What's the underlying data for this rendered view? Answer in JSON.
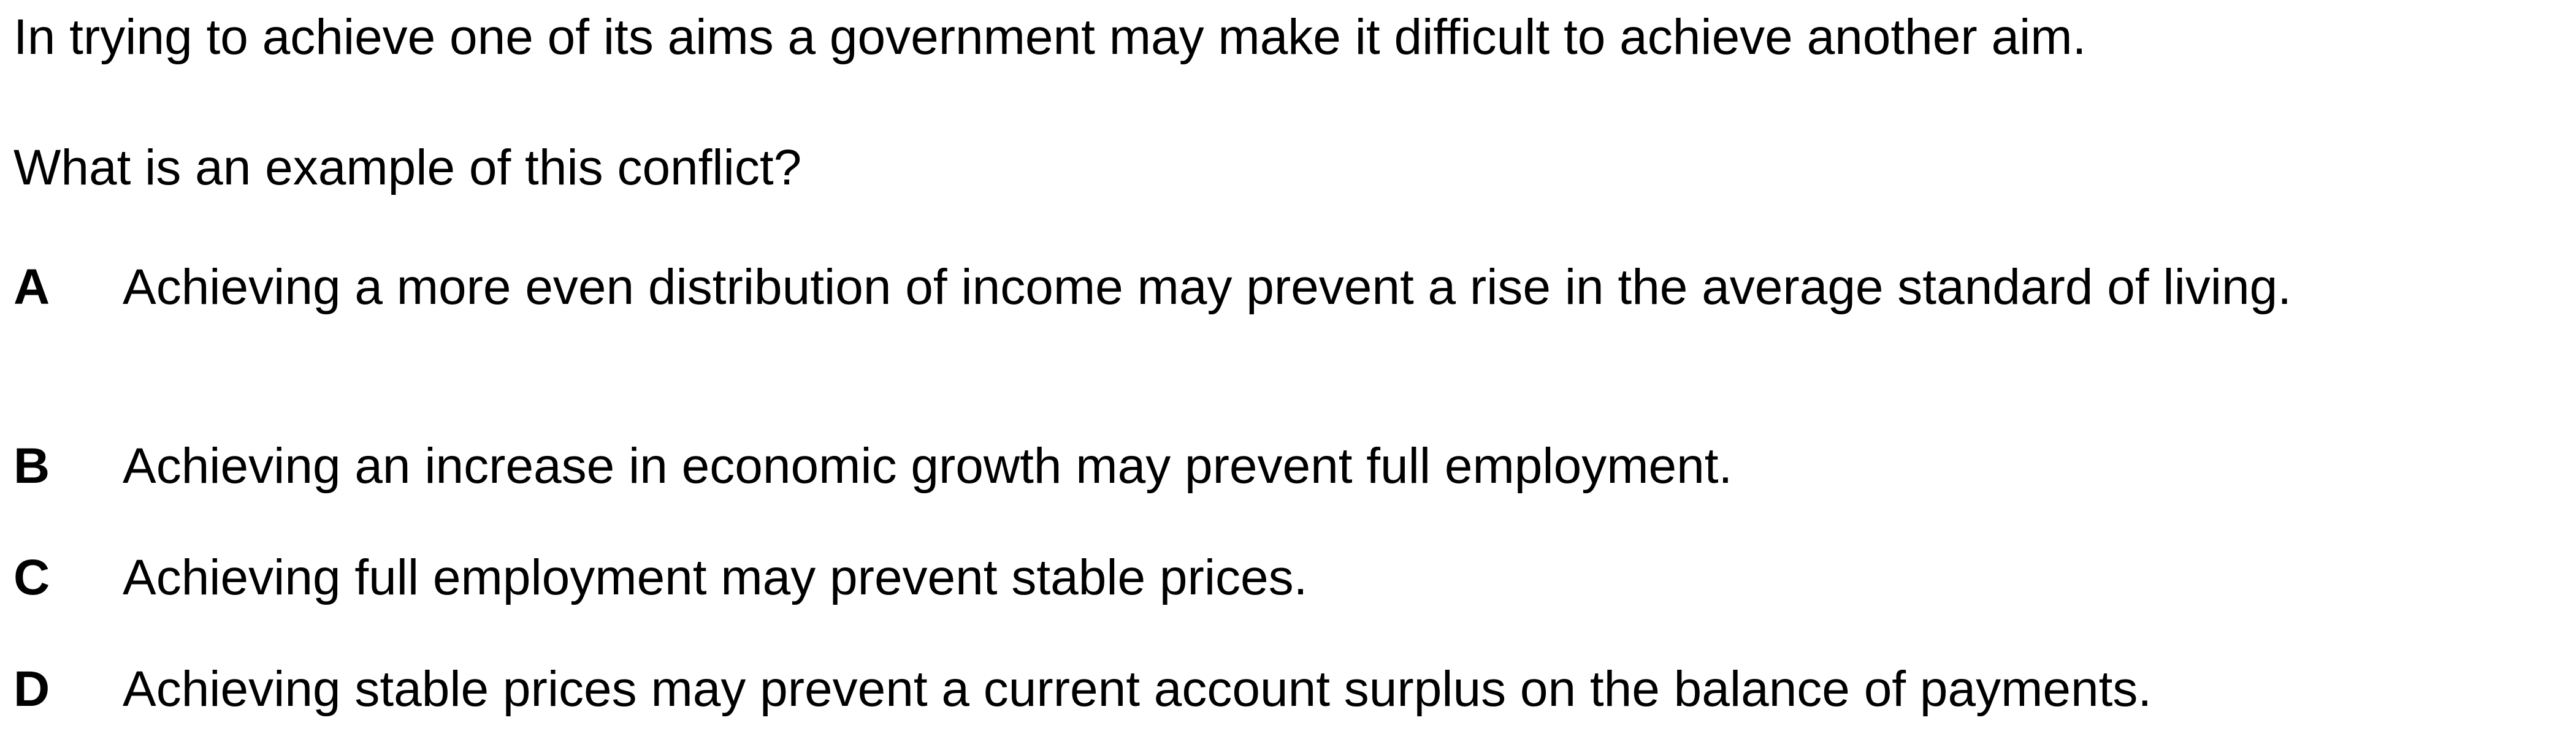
{
  "question": {
    "stem_line_1": "In trying to achieve one of its aims a government may make it difficult to achieve another aim.",
    "stem_line_2": "What is an example of this conflict?"
  },
  "options": [
    {
      "letter": "A",
      "text": "Achieving a more even distribution of income may prevent a rise in the average standard of living."
    },
    {
      "letter": "B",
      "text": "Achieving an increase in economic growth may prevent full employment."
    },
    {
      "letter": "C",
      "text": "Achieving full employment may prevent stable prices."
    },
    {
      "letter": "D",
      "text": "Achieving stable prices may prevent a current account surplus on the balance of payments."
    }
  ]
}
